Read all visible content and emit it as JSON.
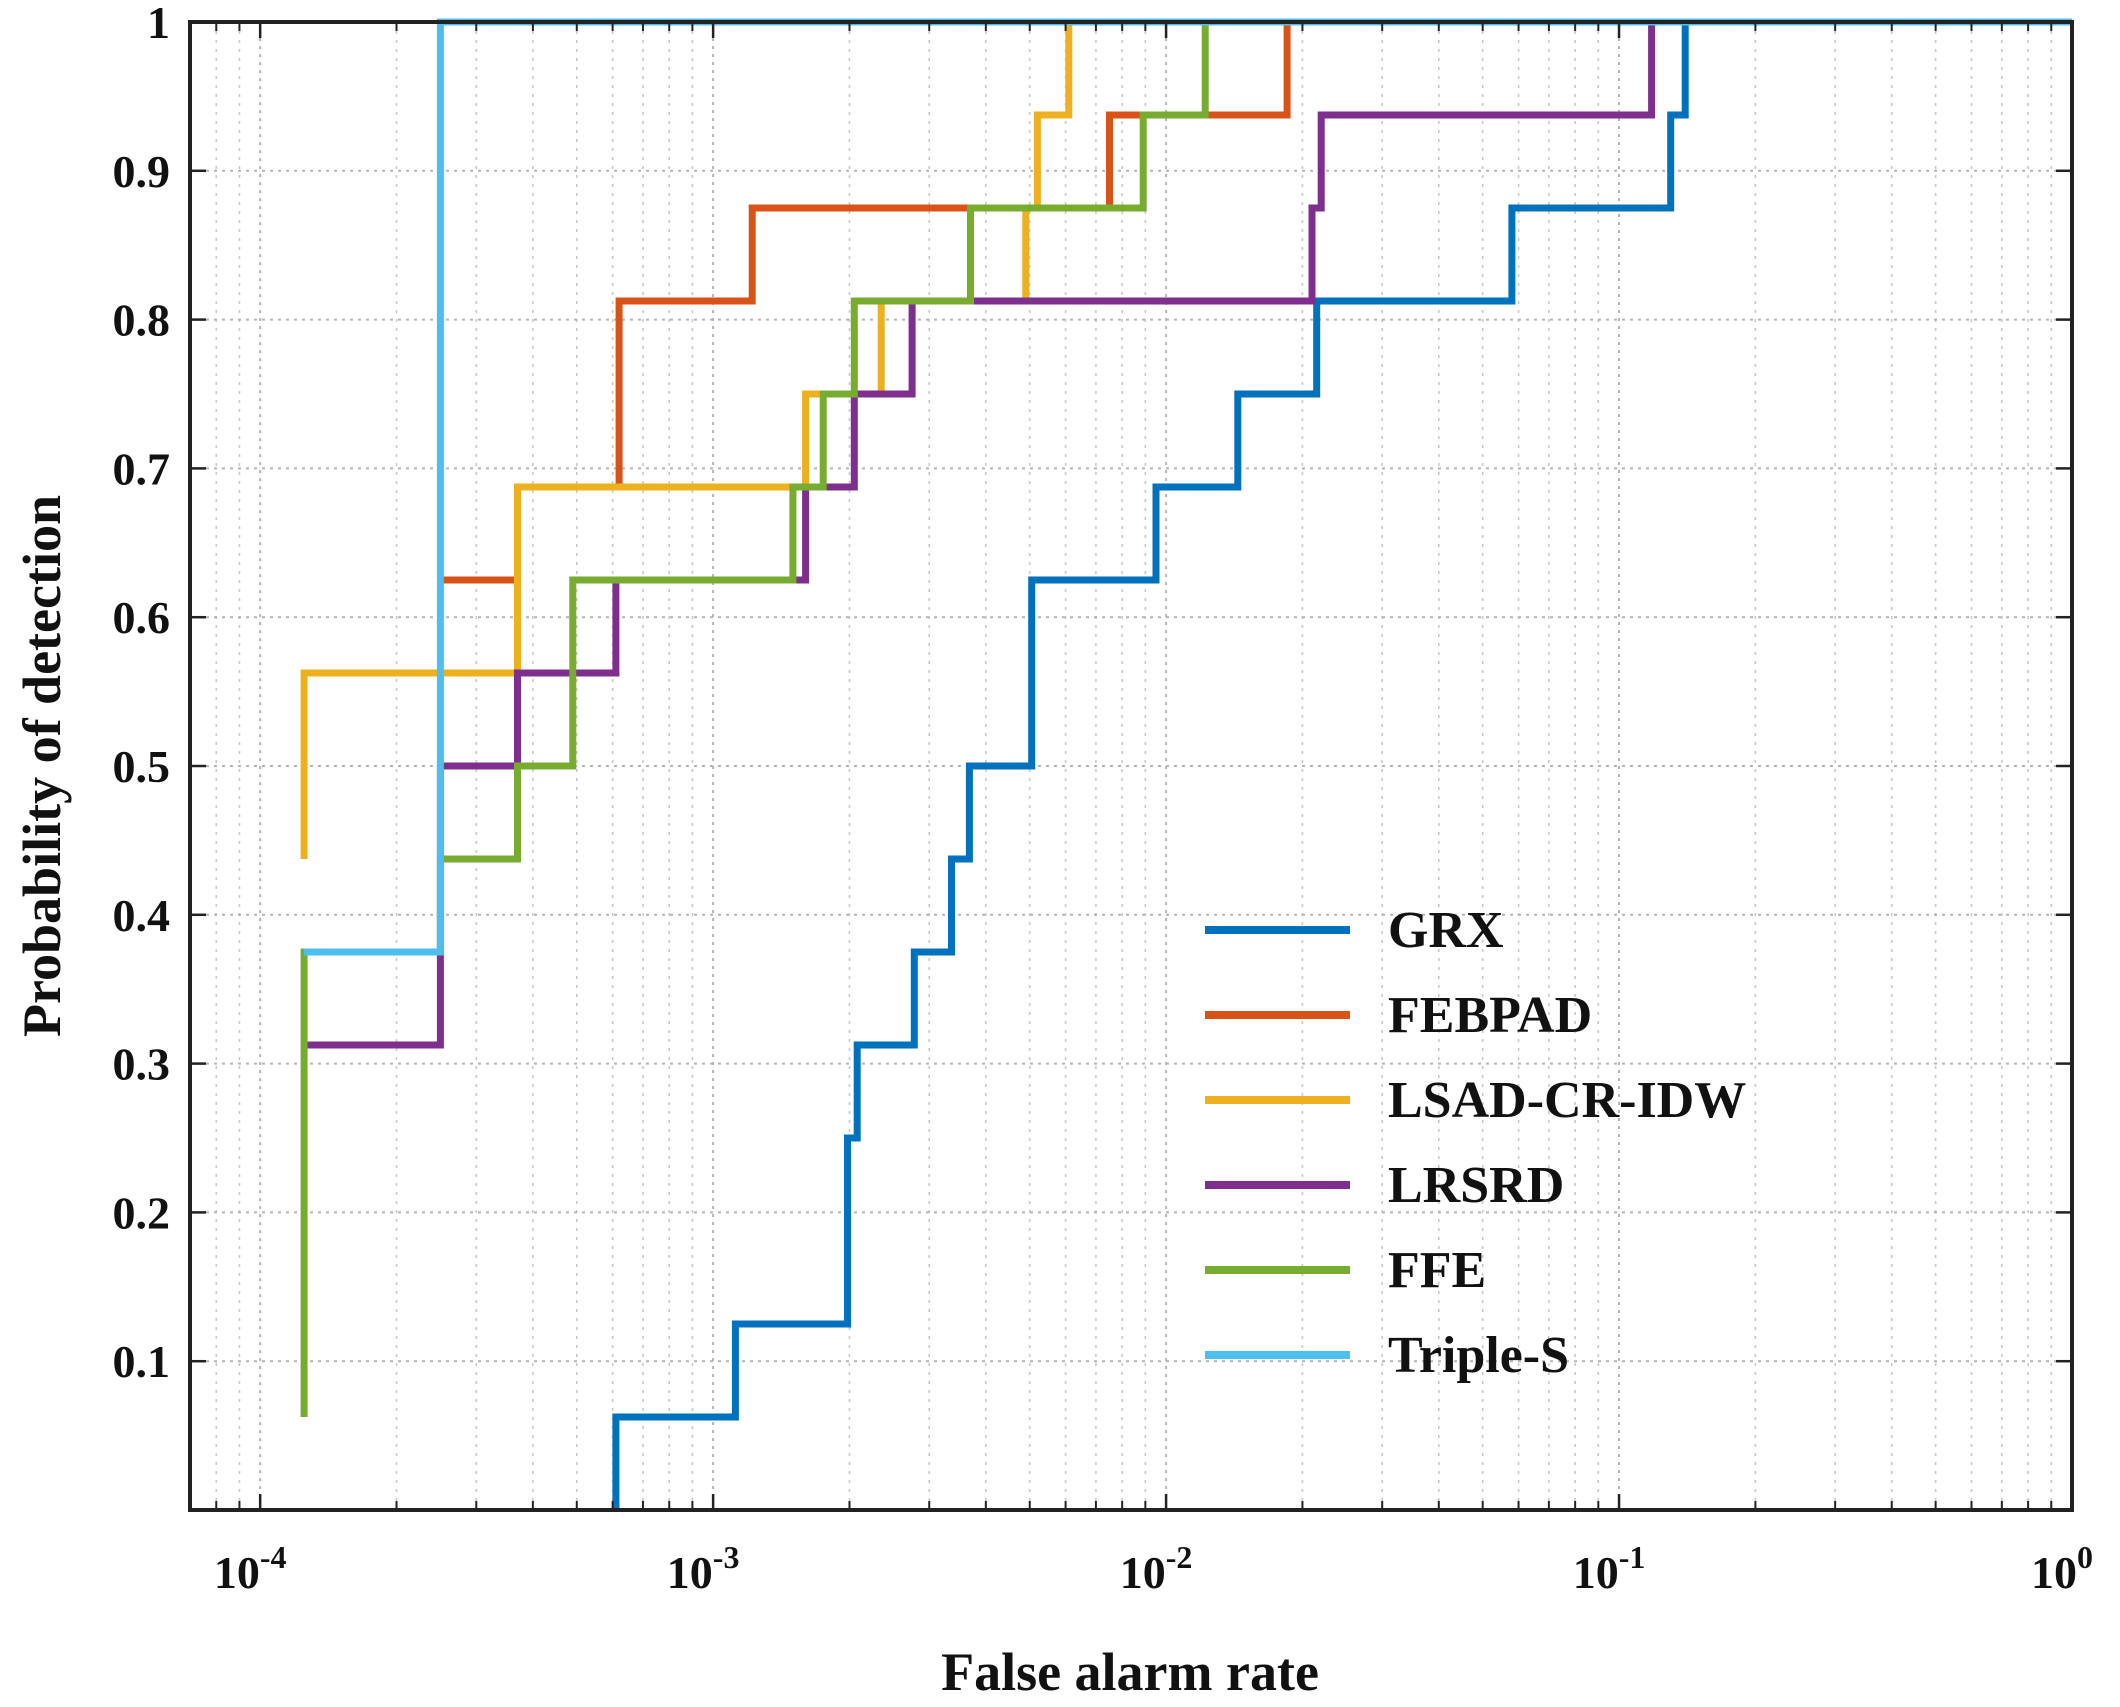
{
  "chart_data": {
    "type": "line",
    "xscale": "log",
    "xlim": [
      7e-05,
      1
    ],
    "ylim": [
      0,
      1
    ],
    "xlabel": "False alarm rate",
    "ylabel": "Probability of detection",
    "grid": true,
    "legend_position": "lower-right",
    "x_ticks": [
      {
        "value": 0.0001,
        "base": "10",
        "exp": "-4"
      },
      {
        "value": 0.001,
        "base": "10",
        "exp": "-3"
      },
      {
        "value": 0.01,
        "base": "10",
        "exp": "-2"
      },
      {
        "value": 0.1,
        "base": "10",
        "exp": "-1"
      },
      {
        "value": 1,
        "base": "10",
        "exp": "0"
      }
    ],
    "y_ticks": [
      {
        "value": 0.1,
        "label": "0.1"
      },
      {
        "value": 0.2,
        "label": "0.2"
      },
      {
        "value": 0.3,
        "label": "0.3"
      },
      {
        "value": 0.4,
        "label": "0.4"
      },
      {
        "value": 0.5,
        "label": "0.5"
      },
      {
        "value": 0.6,
        "label": "0.6"
      },
      {
        "value": 0.7,
        "label": "0.7"
      },
      {
        "value": 0.8,
        "label": "0.8"
      },
      {
        "value": 0.9,
        "label": "0.9"
      },
      {
        "value": 1,
        "label": "1"
      }
    ],
    "series": [
      {
        "name": "GRX",
        "color": "#0072BD",
        "points": [
          [
            0.00061,
            0
          ],
          [
            0.00061,
            0.0625
          ],
          [
            0.00112,
            0.0625
          ],
          [
            0.00112,
            0.125
          ],
          [
            0.00198,
            0.125
          ],
          [
            0.00198,
            0.25
          ],
          [
            0.00208,
            0.25
          ],
          [
            0.00208,
            0.3125
          ],
          [
            0.00278,
            0.3125
          ],
          [
            0.00278,
            0.375
          ],
          [
            0.00336,
            0.375
          ],
          [
            0.00336,
            0.4375
          ],
          [
            0.00368,
            0.4375
          ],
          [
            0.00368,
            0.5
          ],
          [
            0.00505,
            0.5
          ],
          [
            0.00505,
            0.625
          ],
          [
            0.0095,
            0.625
          ],
          [
            0.0095,
            0.6875
          ],
          [
            0.0144,
            0.6875
          ],
          [
            0.0144,
            0.75
          ],
          [
            0.0215,
            0.75
          ],
          [
            0.0215,
            0.8125
          ],
          [
            0.058,
            0.8125
          ],
          [
            0.058,
            0.875
          ],
          [
            0.13,
            0.875
          ],
          [
            0.13,
            0.9375
          ],
          [
            0.14,
            0.9375
          ],
          [
            0.14,
            1
          ],
          [
            1,
            1
          ]
        ]
      },
      {
        "name": "FEBPAD",
        "color": "#D95319",
        "points": [
          [
            0.00025,
            0.625
          ],
          [
            0.00037,
            0.625
          ],
          [
            0.00037,
            0.6875
          ],
          [
            0.00062,
            0.6875
          ],
          [
            0.00062,
            0.8125
          ],
          [
            0.00122,
            0.8125
          ],
          [
            0.00122,
            0.875
          ],
          [
            0.0075,
            0.875
          ],
          [
            0.0075,
            0.9375
          ],
          [
            0.0185,
            0.9375
          ],
          [
            0.0185,
            1
          ],
          [
            1,
            1
          ]
        ]
      },
      {
        "name": "LSAD-CR-IDW",
        "color": "#EDB120",
        "points": [
          [
            0.000125,
            0.4375
          ],
          [
            0.000125,
            0.5625
          ],
          [
            0.00037,
            0.5625
          ],
          [
            0.00037,
            0.6875
          ],
          [
            0.0016,
            0.6875
          ],
          [
            0.0016,
            0.75
          ],
          [
            0.00235,
            0.75
          ],
          [
            0.00235,
            0.8125
          ],
          [
            0.0049,
            0.8125
          ],
          [
            0.0049,
            0.875
          ],
          [
            0.0052,
            0.875
          ],
          [
            0.0052,
            0.9375
          ],
          [
            0.0061,
            0.9375
          ],
          [
            0.0061,
            1
          ],
          [
            1,
            1
          ]
        ]
      },
      {
        "name": "LRSRD",
        "color": "#7E2F8E",
        "points": [
          [
            0.000125,
            0.3125
          ],
          [
            0.00025,
            0.3125
          ],
          [
            0.00025,
            0.375
          ],
          [
            0.00025,
            0.5
          ],
          [
            0.00037,
            0.5
          ],
          [
            0.00037,
            0.5625
          ],
          [
            0.00061,
            0.5625
          ],
          [
            0.00061,
            0.625
          ],
          [
            0.0016,
            0.625
          ],
          [
            0.0016,
            0.6875
          ],
          [
            0.00205,
            0.6875
          ],
          [
            0.00205,
            0.75
          ],
          [
            0.00275,
            0.75
          ],
          [
            0.00275,
            0.8125
          ],
          [
            0.021,
            0.8125
          ],
          [
            0.021,
            0.875
          ],
          [
            0.022,
            0.875
          ],
          [
            0.022,
            0.9375
          ],
          [
            0.118,
            0.9375
          ],
          [
            0.118,
            1
          ],
          [
            1,
            1
          ]
        ]
      },
      {
        "name": "FFE",
        "color": "#77AC30",
        "points": [
          [
            0.000125,
            0.0625
          ],
          [
            0.000125,
            0.375
          ],
          [
            0.00025,
            0.375
          ],
          [
            0.00025,
            0.4375
          ],
          [
            0.00037,
            0.4375
          ],
          [
            0.00037,
            0.5
          ],
          [
            0.00049,
            0.5
          ],
          [
            0.00049,
            0.625
          ],
          [
            0.0015,
            0.625
          ],
          [
            0.0015,
            0.6875
          ],
          [
            0.00175,
            0.6875
          ],
          [
            0.00175,
            0.75
          ],
          [
            0.00205,
            0.75
          ],
          [
            0.00205,
            0.8125
          ],
          [
            0.0037,
            0.8125
          ],
          [
            0.0037,
            0.875
          ],
          [
            0.0089,
            0.875
          ],
          [
            0.0089,
            0.9375
          ],
          [
            0.0122,
            0.9375
          ],
          [
            0.0122,
            1
          ],
          [
            1,
            1
          ]
        ]
      },
      {
        "name": "Triple-S",
        "color": "#4DBEEE",
        "points": [
          [
            0.000125,
            0.375
          ],
          [
            0.00025,
            0.375
          ],
          [
            0.00025,
            1
          ],
          [
            1,
            1
          ]
        ]
      }
    ]
  }
}
